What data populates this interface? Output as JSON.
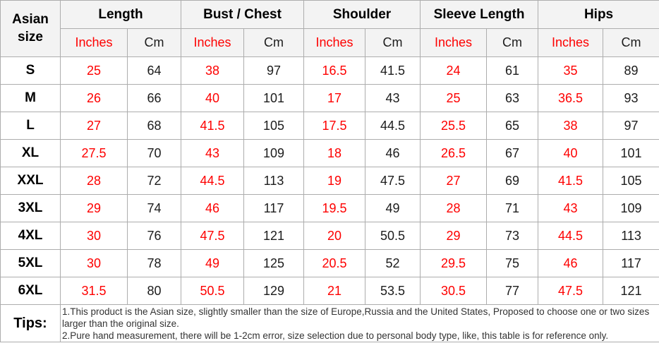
{
  "table": {
    "corner_header": "Asian size",
    "groups": [
      {
        "label": "Length"
      },
      {
        "label": "Bust / Chest"
      },
      {
        "label": "Shoulder"
      },
      {
        "label": "Sleeve Length"
      },
      {
        "label": "Hips"
      }
    ],
    "unit_headers": {
      "inches": "Inches",
      "cm": "Cm"
    },
    "rows": [
      {
        "size": "S",
        "values": [
          "25",
          "64",
          "38",
          "97",
          "16.5",
          "41.5",
          "24",
          "61",
          "35",
          "89"
        ]
      },
      {
        "size": "M",
        "values": [
          "26",
          "66",
          "40",
          "101",
          "17",
          "43",
          "25",
          "63",
          "36.5",
          "93"
        ]
      },
      {
        "size": "L",
        "values": [
          "27",
          "68",
          "41.5",
          "105",
          "17.5",
          "44.5",
          "25.5",
          "65",
          "38",
          "97"
        ]
      },
      {
        "size": "XL",
        "values": [
          "27.5",
          "70",
          "43",
          "109",
          "18",
          "46",
          "26.5",
          "67",
          "40",
          "101"
        ]
      },
      {
        "size": "XXL",
        "values": [
          "28",
          "72",
          "44.5",
          "113",
          "19",
          "47.5",
          "27",
          "69",
          "41.5",
          "105"
        ]
      },
      {
        "size": "3XL",
        "values": [
          "29",
          "74",
          "46",
          "117",
          "19.5",
          "49",
          "28",
          "71",
          "43",
          "109"
        ]
      },
      {
        "size": "4XL",
        "values": [
          "30",
          "76",
          "47.5",
          "121",
          "20",
          "50.5",
          "29",
          "73",
          "44.5",
          "113"
        ]
      },
      {
        "size": "5XL",
        "values": [
          "30",
          "78",
          "49",
          "125",
          "20.5",
          "52",
          "29.5",
          "75",
          "46",
          "117"
        ]
      },
      {
        "size": "6XL",
        "values": [
          "31.5",
          "80",
          "50.5",
          "129",
          "21",
          "53.5",
          "30.5",
          "77",
          "47.5",
          "121"
        ]
      }
    ],
    "tips": {
      "label": "Tips:",
      "lines": [
        "1.This product is the Asian size, slightly smaller than the size of Europe,Russia and the United States, Proposed to choose one or two sizes larger than the original size.",
        "2.Pure hand measurement, there will be 1-2cm error, size selection due to personal body type, like, this table is for reference only."
      ]
    }
  },
  "colors": {
    "accent_red": "#fe0000",
    "header_bg": "#f3f3f3",
    "border": "#adadad",
    "text_dark": "#1c1c1c"
  }
}
